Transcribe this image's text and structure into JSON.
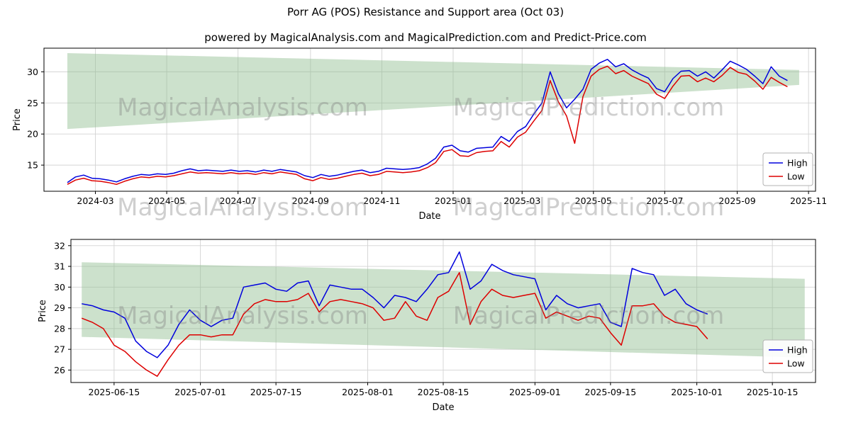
{
  "figure": {
    "title": "Porr AG (POS) Resistance and Support area (Oct 03)",
    "subtitle": "powered by MagicalAnalysis.com and MagicalPrediction.com and Predict-Price.com"
  },
  "watermarks": {
    "left": "MagicalAnalysis.com",
    "right": "MagicalPrediction.com"
  },
  "colors": {
    "high_line": "#0000dd",
    "low_line": "#dd0000",
    "band_fill": "#8fbc8f",
    "grid": "#d3d3d3",
    "axis": "#000000"
  },
  "chart_data": [
    {
      "type": "line",
      "xlabel": "Date",
      "ylabel": "Price",
      "x_unit": "days since 2024-01-01",
      "x_domain": [
        16,
        676
      ],
      "y_domain": [
        10.8,
        33.8
      ],
      "y_ticks": [
        15,
        20,
        25,
        30
      ],
      "x_ticks": [
        {
          "day": 60,
          "label": "2024-03"
        },
        {
          "day": 121,
          "label": "2024-05"
        },
        {
          "day": 182,
          "label": "2024-07"
        },
        {
          "day": 244,
          "label": "2024-09"
        },
        {
          "day": 305,
          "label": "2024-11"
        },
        {
          "day": 366,
          "label": "2025-01"
        },
        {
          "day": 425,
          "label": "2025-03"
        },
        {
          "day": 486,
          "label": "2025-05"
        },
        {
          "day": 547,
          "label": "2025-07"
        },
        {
          "day": 609,
          "label": "2025-09"
        },
        {
          "day": 670,
          "label": "2025-11"
        }
      ],
      "grid": true,
      "legend": [
        "High",
        "Low"
      ],
      "band": {
        "name": "resistance-support-area",
        "x": [
          36,
          662
        ],
        "top": [
          33.0,
          30.3
        ],
        "bottom": [
          20.8,
          27.9
        ],
        "opacity": 0.45
      },
      "series": [
        {
          "name": "High",
          "color": "#0000dd",
          "x0": 36,
          "step": 7,
          "values": [
            12.2,
            13.1,
            13.4,
            12.9,
            12.8,
            12.6,
            12.3,
            12.8,
            13.2,
            13.5,
            13.4,
            13.6,
            13.5,
            13.7,
            14.1,
            14.4,
            14.1,
            14.2,
            14.1,
            14.0,
            14.2,
            14.0,
            14.1,
            13.9,
            14.2,
            14.0,
            14.3,
            14.1,
            13.9,
            13.3,
            13.0,
            13.5,
            13.2,
            13.4,
            13.7,
            14.0,
            14.2,
            13.8,
            14.0,
            14.5,
            14.4,
            14.3,
            14.4,
            14.6,
            15.2,
            16.1,
            17.9,
            18.2,
            17.3,
            17.1,
            17.7,
            17.8,
            17.9,
            19.6,
            18.8,
            20.4,
            21.2,
            23.2,
            25.0,
            30.0,
            26.5,
            24.2,
            25.6,
            27.2,
            30.4,
            31.4,
            32.0,
            30.8,
            31.3,
            30.3,
            29.6,
            29.0,
            27.3,
            26.8,
            28.9,
            30.1,
            30.2,
            29.3,
            30.0,
            29.0,
            30.3,
            31.7,
            31.1,
            30.4,
            29.3,
            28.1,
            30.8,
            29.3,
            28.6
          ]
        },
        {
          "name": "Low",
          "color": "#dd0000",
          "x0": 36,
          "step": 7,
          "values": [
            11.9,
            12.6,
            12.9,
            12.5,
            12.4,
            12.2,
            11.9,
            12.4,
            12.8,
            13.1,
            13.0,
            13.2,
            13.1,
            13.3,
            13.6,
            13.9,
            13.7,
            13.8,
            13.7,
            13.6,
            13.8,
            13.6,
            13.7,
            13.5,
            13.8,
            13.6,
            13.9,
            13.7,
            13.5,
            12.8,
            12.5,
            13.0,
            12.7,
            12.9,
            13.2,
            13.5,
            13.7,
            13.3,
            13.5,
            14.0,
            13.9,
            13.8,
            13.9,
            14.1,
            14.6,
            15.4,
            17.2,
            17.5,
            16.5,
            16.4,
            17.0,
            17.2,
            17.3,
            18.8,
            17.9,
            19.5,
            20.3,
            22.1,
            23.8,
            28.6,
            25.2,
            22.9,
            18.5,
            26.0,
            29.3,
            30.4,
            30.9,
            29.7,
            30.2,
            29.3,
            28.7,
            28.1,
            26.4,
            25.7,
            27.7,
            29.3,
            29.4,
            28.4,
            29.0,
            28.4,
            29.4,
            30.7,
            29.9,
            29.6,
            28.5,
            27.2,
            29.1,
            28.3,
            27.6
          ]
        }
      ]
    },
    {
      "type": "line",
      "xlabel": "Date",
      "ylabel": "Price",
      "x_unit": "days since 2024-01-01",
      "x_domain": [
        523,
        661
      ],
      "y_domain": [
        25.4,
        32.3
      ],
      "y_ticks": [
        26,
        27,
        28,
        29,
        30,
        31,
        32
      ],
      "x_ticks": [
        {
          "day": 531,
          "label": "2025-06-15"
        },
        {
          "day": 547,
          "label": "2025-07-01"
        },
        {
          "day": 561,
          "label": "2025-07-15"
        },
        {
          "day": 578,
          "label": "2025-08-01"
        },
        {
          "day": 592,
          "label": "2025-08-15"
        },
        {
          "day": 609,
          "label": "2025-09-01"
        },
        {
          "day": 623,
          "label": "2025-09-15"
        },
        {
          "day": 639,
          "label": "2025-10-01"
        },
        {
          "day": 653,
          "label": "2025-10-15"
        }
      ],
      "grid": true,
      "legend": [
        "High",
        "Low"
      ],
      "band": {
        "name": "resistance-support-area",
        "x": [
          525,
          659
        ],
        "top": [
          31.2,
          30.4
        ],
        "bottom": [
          27.6,
          26.6
        ],
        "opacity": 0.45
      },
      "series": [
        {
          "name": "High",
          "color": "#0000dd",
          "x0": 525,
          "step": 2,
          "values": [
            29.2,
            29.1,
            28.9,
            28.8,
            28.5,
            27.4,
            26.9,
            26.6,
            27.2,
            28.2,
            28.9,
            28.4,
            28.1,
            28.4,
            28.5,
            30.0,
            30.1,
            30.2,
            29.9,
            29.8,
            30.2,
            30.3,
            29.1,
            30.1,
            30.0,
            29.9,
            29.9,
            29.5,
            29.0,
            29.6,
            29.5,
            29.3,
            29.9,
            30.6,
            30.7,
            31.7,
            29.9,
            30.3,
            31.1,
            30.8,
            30.6,
            30.5,
            30.4,
            28.9,
            29.6,
            29.2,
            29.0,
            29.1,
            29.2,
            28.3,
            28.1,
            30.9,
            30.7,
            30.6,
            29.6,
            29.9,
            29.2,
            28.9,
            28.7
          ]
        },
        {
          "name": "Low",
          "color": "#dd0000",
          "x0": 525,
          "step": 2,
          "values": [
            28.5,
            28.3,
            28.0,
            27.2,
            26.9,
            26.4,
            26.0,
            25.7,
            26.5,
            27.2,
            27.7,
            27.7,
            27.6,
            27.7,
            27.7,
            28.7,
            29.2,
            29.4,
            29.3,
            29.3,
            29.4,
            29.7,
            28.8,
            29.3,
            29.4,
            29.3,
            29.2,
            29.0,
            28.4,
            28.5,
            29.3,
            28.6,
            28.4,
            29.5,
            29.8,
            30.7,
            28.2,
            29.3,
            29.9,
            29.6,
            29.5,
            29.6,
            29.7,
            28.5,
            28.8,
            28.6,
            28.4,
            28.6,
            28.5,
            27.8,
            27.2,
            29.1,
            29.1,
            29.2,
            28.6,
            28.3,
            28.2,
            28.1,
            27.5
          ]
        }
      ]
    }
  ]
}
